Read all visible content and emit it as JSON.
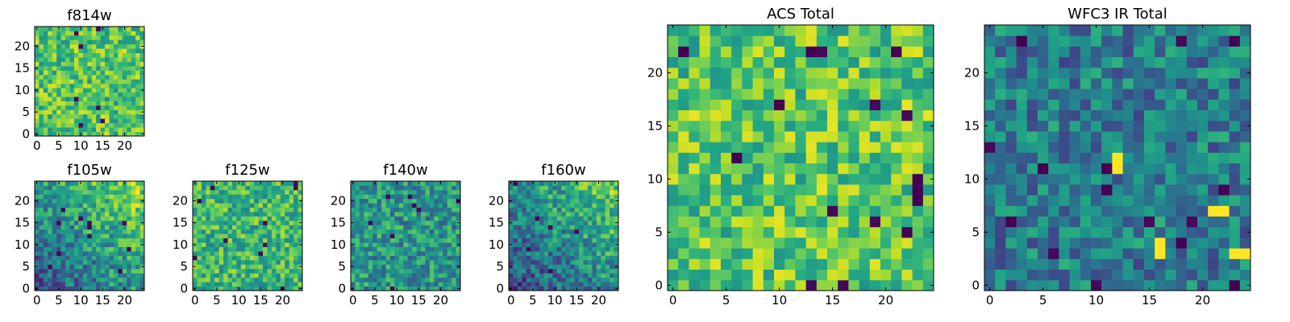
{
  "chart_data": [
    {
      "type": "heatmap",
      "title": "f814w",
      "colormap": "viridis",
      "grid_size": [
        25,
        25
      ],
      "xlim": [
        0,
        24
      ],
      "ylim": [
        0,
        24
      ],
      "xticks": [
        0,
        5,
        10,
        15,
        20
      ],
      "yticks": [
        0,
        5,
        10,
        15,
        20
      ],
      "xtick_labels": [
        "0",
        "5",
        "10",
        "15",
        "20"
      ],
      "ytick_labels": [
        "0",
        "5",
        "10",
        "15",
        "20"
      ],
      "value_range": [
        0,
        1
      ],
      "pattern": "noise",
      "mean_level": 0.72,
      "seed": 11
    },
    {
      "type": "heatmap",
      "title": "f105w",
      "colormap": "viridis",
      "grid_size": [
        25,
        25
      ],
      "xlim": [
        0,
        24
      ],
      "ylim": [
        0,
        24
      ],
      "xticks": [
        0,
        5,
        10,
        15,
        20
      ],
      "yticks": [
        0,
        5,
        10,
        15,
        20
      ],
      "xtick_labels": [
        "0",
        "5",
        "10",
        "15",
        "20"
      ],
      "ytick_labels": [
        "0",
        "5",
        "10",
        "15",
        "20"
      ],
      "value_range": [
        0,
        1
      ],
      "pattern": "bright-upper-right",
      "mean_level": 0.55,
      "seed": 23
    },
    {
      "type": "heatmap",
      "title": "f125w",
      "colormap": "viridis",
      "grid_size": [
        25,
        25
      ],
      "xlim": [
        0,
        24
      ],
      "ylim": [
        0,
        24
      ],
      "xticks": [
        0,
        5,
        10,
        15,
        20
      ],
      "yticks": [
        0,
        5,
        10,
        15,
        20
      ],
      "xtick_labels": [
        "0",
        "5",
        "10",
        "15",
        "20"
      ],
      "ytick_labels": [
        "0",
        "5",
        "10",
        "15",
        "20"
      ],
      "value_range": [
        0,
        1
      ],
      "pattern": "noise",
      "mean_level": 0.66,
      "seed": 37
    },
    {
      "type": "heatmap",
      "title": "f140w",
      "colormap": "viridis",
      "grid_size": [
        25,
        25
      ],
      "xlim": [
        0,
        24
      ],
      "ylim": [
        0,
        24
      ],
      "xticks": [
        0,
        5,
        10,
        15,
        20
      ],
      "yticks": [
        0,
        5,
        10,
        15,
        20
      ],
      "xtick_labels": [
        "0",
        "5",
        "10",
        "15",
        "20"
      ],
      "ytick_labels": [
        "0",
        "5",
        "10",
        "15",
        "20"
      ],
      "value_range": [
        0,
        1
      ],
      "pattern": "noise",
      "mean_level": 0.52,
      "seed": 41
    },
    {
      "type": "heatmap",
      "title": "f160w",
      "colormap": "viridis",
      "grid_size": [
        25,
        25
      ],
      "xlim": [
        0,
        24
      ],
      "ylim": [
        0,
        24
      ],
      "xticks": [
        0,
        5,
        10,
        15,
        20
      ],
      "yticks": [
        0,
        5,
        10,
        15,
        20
      ],
      "xtick_labels": [
        "0",
        "5",
        "10",
        "15",
        "20"
      ],
      "ytick_labels": [
        "0",
        "5",
        "10",
        "15",
        "20"
      ],
      "value_range": [
        0,
        1
      ],
      "pattern": "bright-upper-right",
      "mean_level": 0.5,
      "seed": 53
    },
    {
      "type": "heatmap",
      "title": "ACS Total",
      "colormap": "viridis",
      "grid_size": [
        25,
        25
      ],
      "xlim": [
        0,
        24
      ],
      "ylim": [
        0,
        24
      ],
      "xticks": [
        0,
        5,
        10,
        15,
        20
      ],
      "yticks": [
        0,
        5,
        10,
        15,
        20
      ],
      "xtick_labels": [
        "0",
        "5",
        "10",
        "15",
        "20"
      ],
      "ytick_labels": [
        "0",
        "5",
        "10",
        "15",
        "20"
      ],
      "value_range": [
        0,
        1
      ],
      "pattern": "noise",
      "mean_level": 0.74,
      "seed": 67,
      "dark_cells": [
        [
          1,
          22
        ],
        [
          13,
          22
        ],
        [
          21,
          22
        ],
        [
          10,
          17
        ],
        [
          6,
          12
        ],
        [
          23,
          10
        ],
        [
          23,
          9
        ],
        [
          23,
          8
        ],
        [
          22,
          5
        ]
      ]
    },
    {
      "type": "heatmap",
      "title": "WFC3 IR Total",
      "colormap": "viridis",
      "grid_size": [
        25,
        25
      ],
      "xlim": [
        0,
        24
      ],
      "ylim": [
        0,
        24
      ],
      "xticks": [
        0,
        5,
        10,
        15,
        20
      ],
      "yticks": [
        0,
        5,
        10,
        15,
        20
      ],
      "xtick_labels": [
        "0",
        "5",
        "10",
        "15",
        "20"
      ],
      "ytick_labels": [
        "0",
        "5",
        "10",
        "15",
        "20"
      ],
      "value_range": [
        0,
        1
      ],
      "pattern": "noise",
      "mean_level": 0.42,
      "seed": 79,
      "dark_cells": [
        [
          3,
          23
        ],
        [
          23,
          23
        ],
        [
          5,
          11
        ],
        [
          11,
          11
        ],
        [
          11,
          9
        ],
        [
          2,
          6
        ],
        [
          22,
          9
        ],
        [
          18,
          4
        ],
        [
          23,
          0
        ]
      ],
      "bright_cells": [
        [
          12,
          11
        ],
        [
          12,
          12
        ],
        [
          21,
          7
        ],
        [
          22,
          7
        ],
        [
          16,
          3
        ],
        [
          16,
          4
        ],
        [
          23,
          3
        ],
        [
          24,
          3
        ]
      ]
    }
  ]
}
